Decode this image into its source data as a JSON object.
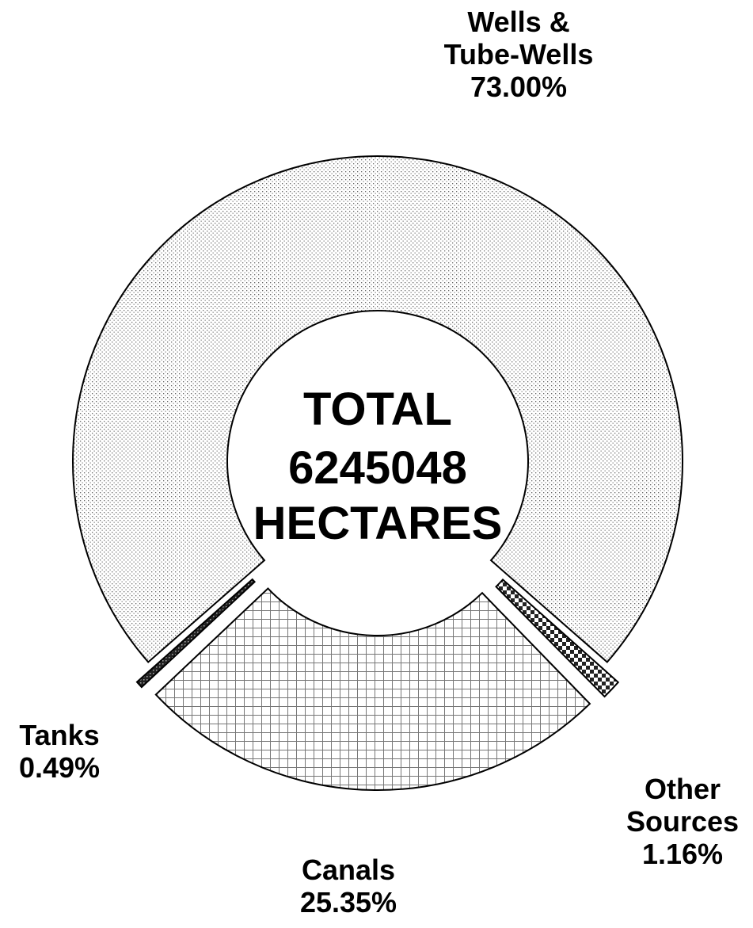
{
  "chart_data": {
    "type": "donut",
    "categories": [
      "Wells & Tube-Wells",
      "Other Sources",
      "Canals",
      "Tanks"
    ],
    "values": [
      73.0,
      1.16,
      25.35,
      0.49
    ],
    "value_labels": [
      "73.00%",
      "1.16%",
      "25.35%",
      "0.49%"
    ],
    "center_top": "TOTAL",
    "total": 6245048,
    "center_bottom": "HECTARES"
  }
}
